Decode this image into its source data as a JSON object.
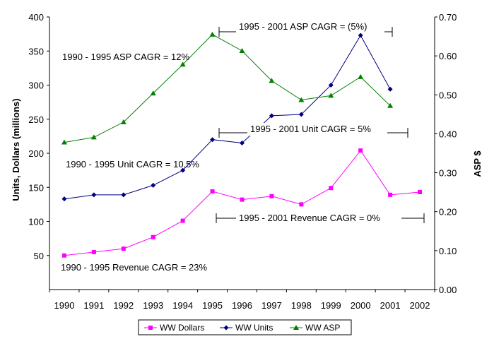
{
  "chart_data": {
    "type": "line",
    "categories": [
      "1990",
      "1991",
      "1992",
      "1993",
      "1994",
      "1995",
      "1996",
      "1997",
      "1998",
      "1999",
      "2000",
      "2001",
      "2002"
    ],
    "ylabel": "Units, Dollars (millions)",
    "y2label": "ASP $",
    "ylim": [
      0,
      400
    ],
    "y2lim": [
      0,
      0.7
    ],
    "left_ticks": [
      "400",
      "350",
      "300",
      "250",
      "200",
      "150",
      "100",
      "50"
    ],
    "right_ticks": [
      "0.70",
      "0.60",
      "0.50",
      "0.40",
      "0.30",
      "0.20",
      "0.10",
      "0.00"
    ],
    "grid": false,
    "legend_position": "bottom",
    "series": [
      {
        "name": "WW Dollars",
        "axis": "left",
        "color": "#FF00FF",
        "marker": "square",
        "values": [
          50,
          55,
          60,
          77,
          101,
          144,
          132,
          137,
          125,
          149,
          204,
          139,
          143
        ]
      },
      {
        "name": "WW Units",
        "axis": "left",
        "color": "#000080",
        "marker": "diamond",
        "values": [
          133,
          139,
          139,
          153,
          175,
          220,
          215,
          255,
          257,
          300,
          373,
          294,
          null
        ]
      },
      {
        "name": "WW ASP",
        "axis": "right",
        "color": "#008000",
        "marker": "triangle",
        "values": [
          0.378,
          0.391,
          0.43,
          0.504,
          0.578,
          0.655,
          0.613,
          0.536,
          0.487,
          0.498,
          0.546,
          0.472,
          null
        ]
      }
    ],
    "annotations": [
      "1995 - 2001 ASP CAGR = (5%)",
      "1990 - 1995 ASP CAGR = 12%",
      "1995 - 2001 Unit CAGR = 5%",
      "1990 - 1995 Unit CAGR = 10.5%",
      "1995 - 2001 Revenue CAGR = 0%",
      "1990 - 1995 Revenue CAGR = 23%"
    ]
  }
}
